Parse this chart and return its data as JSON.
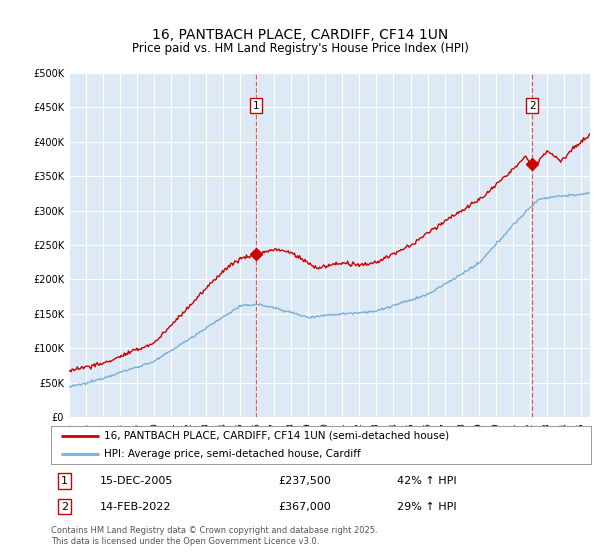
{
  "title": "16, PANTBACH PLACE, CARDIFF, CF14 1UN",
  "subtitle": "Price paid vs. HM Land Registry's House Price Index (HPI)",
  "ylim": [
    0,
    500000
  ],
  "yticks": [
    0,
    50000,
    100000,
    150000,
    200000,
    250000,
    300000,
    350000,
    400000,
    450000,
    500000
  ],
  "ytick_labels": [
    "£0",
    "£50K",
    "£100K",
    "£150K",
    "£200K",
    "£250K",
    "£300K",
    "£350K",
    "£400K",
    "£450K",
    "£500K"
  ],
  "xlim_start": 1995.0,
  "xlim_end": 2025.5,
  "bg_color": "#ddeaf5",
  "grid_color": "#c8d8e8",
  "red_color": "#cc0000",
  "blue_color": "#7aafd4",
  "marker1_x": 2005.96,
  "marker1_y": 237500,
  "marker2_x": 2022.12,
  "marker2_y": 367000,
  "legend_label_red": "16, PANTBACH PLACE, CARDIFF, CF14 1UN (semi-detached house)",
  "legend_label_blue": "HPI: Average price, semi-detached house, Cardiff",
  "annotation1_num": "1",
  "annotation1_date": "15-DEC-2005",
  "annotation1_price": "£237,500",
  "annotation1_hpi": "42% ↑ HPI",
  "annotation2_num": "2",
  "annotation2_date": "14-FEB-2022",
  "annotation2_price": "£367,000",
  "annotation2_hpi": "29% ↑ HPI",
  "footer": "Contains HM Land Registry data © Crown copyright and database right 2025.\nThis data is licensed under the Open Government Licence v3.0."
}
